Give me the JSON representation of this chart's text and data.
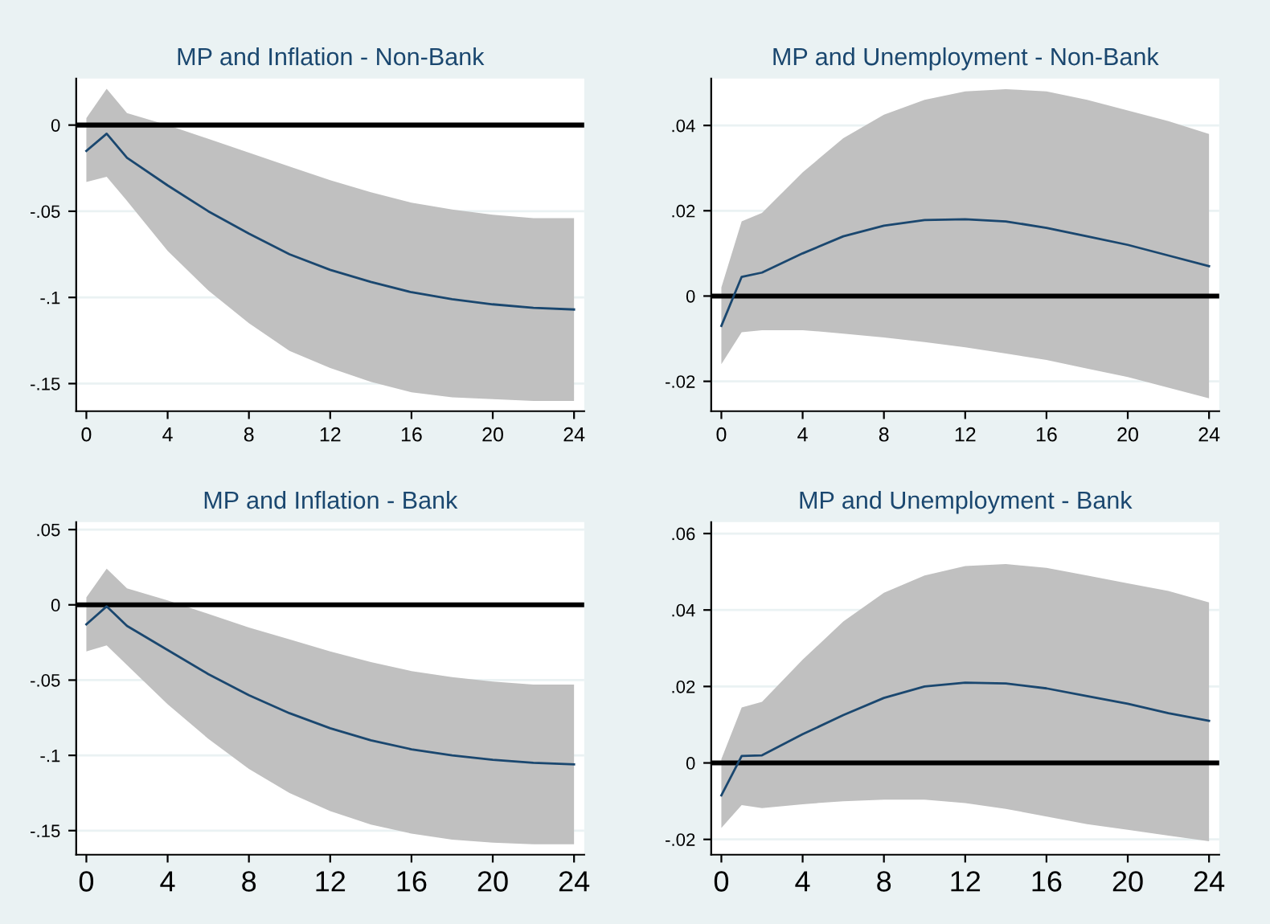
{
  "chart_data": [
    {
      "type": "line",
      "title": "MP and Inflation - Non-Bank",
      "x": [
        0,
        1,
        2,
        4,
        6,
        8,
        10,
        12,
        14,
        16,
        18,
        20,
        22,
        24
      ],
      "series": [
        {
          "color": "#1a476f",
          "values": [
            -0.015,
            -0.005,
            -0.019,
            -0.035,
            -0.05,
            -0.063,
            -0.075,
            -0.084,
            -0.091,
            -0.097,
            -0.101,
            -0.104,
            -0.106,
            -0.107
          ],
          "lower": [
            -0.033,
            -0.03,
            -0.044,
            -0.073,
            -0.096,
            -0.115,
            -0.131,
            -0.141,
            -0.149,
            -0.155,
            -0.158,
            -0.159,
            -0.16,
            -0.16
          ],
          "upper": [
            0.004,
            0.021,
            0.007,
            0.0,
            -0.008,
            -0.016,
            -0.024,
            -0.032,
            -0.039,
            -0.045,
            -0.049,
            -0.052,
            -0.054,
            -0.054
          ]
        }
      ],
      "xlim": [
        -0.5,
        24.5
      ],
      "xticks": [
        0,
        4,
        8,
        12,
        16,
        20,
        24
      ],
      "ylim": [
        -0.166,
        0.027
      ],
      "yticks": [
        {
          "value": 0,
          "label": "0"
        },
        {
          "value": -0.05,
          "label": "-.05"
        },
        {
          "value": -0.1,
          "label": "-.1"
        },
        {
          "value": -0.15,
          "label": "-.15"
        }
      ],
      "ref_lines": [
        {
          "axis": "y",
          "value": 0,
          "color": "#000000"
        }
      ],
      "grid": "y",
      "legend": false
    },
    {
      "type": "line",
      "title": "MP and Unemployment - Non-Bank",
      "x": [
        0,
        1,
        2,
        4,
        6,
        8,
        10,
        12,
        14,
        16,
        18,
        20,
        22,
        24
      ],
      "series": [
        {
          "color": "#1a476f",
          "values": [
            -0.007,
            0.0045,
            0.0055,
            0.01,
            0.014,
            0.0165,
            0.0178,
            0.018,
            0.0175,
            0.016,
            0.014,
            0.012,
            0.0095,
            0.007
          ],
          "lower": [
            -0.016,
            -0.0085,
            -0.008,
            -0.008,
            -0.0088,
            -0.0097,
            -0.0108,
            -0.012,
            -0.0135,
            -0.015,
            -0.017,
            -0.019,
            -0.0215,
            -0.024
          ],
          "upper": [
            0.002,
            0.0175,
            0.0195,
            0.029,
            0.037,
            0.0425,
            0.046,
            0.048,
            0.0485,
            0.048,
            0.046,
            0.0435,
            0.041,
            0.038
          ]
        }
      ],
      "xlim": [
        -0.5,
        24.5
      ],
      "xticks": [
        0,
        4,
        8,
        12,
        16,
        20,
        24
      ],
      "ylim": [
        -0.027,
        0.051
      ],
      "yticks": [
        {
          "value": -0.02,
          "label": "-.02"
        },
        {
          "value": 0,
          "label": "0"
        },
        {
          "value": 0.02,
          "label": ".02"
        },
        {
          "value": 0.04,
          "label": ".04"
        }
      ],
      "ref_lines": [
        {
          "axis": "y",
          "value": 0,
          "color": "#000000"
        }
      ],
      "grid": "y",
      "legend": false
    },
    {
      "type": "line",
      "title": "MP and Inflation - Bank",
      "x": [
        0,
        1,
        2,
        4,
        6,
        8,
        10,
        12,
        14,
        16,
        18,
        20,
        22,
        24
      ],
      "series": [
        {
          "color": "#1a476f",
          "values": [
            -0.013,
            -0.001,
            -0.014,
            -0.03,
            -0.046,
            -0.06,
            -0.072,
            -0.082,
            -0.09,
            -0.096,
            -0.1,
            -0.103,
            -0.105,
            -0.106
          ],
          "lower": [
            -0.031,
            -0.027,
            -0.04,
            -0.066,
            -0.089,
            -0.109,
            -0.125,
            -0.137,
            -0.146,
            -0.152,
            -0.156,
            -0.158,
            -0.159,
            -0.159
          ],
          "upper": [
            0.005,
            0.024,
            0.011,
            0.003,
            -0.006,
            -0.015,
            -0.023,
            -0.031,
            -0.038,
            -0.044,
            -0.048,
            -0.051,
            -0.053,
            -0.053
          ]
        }
      ],
      "xlim": [
        -0.5,
        24.5
      ],
      "xticks": [
        0,
        4,
        8,
        12,
        16,
        20,
        24
      ],
      "ylim": [
        -0.166,
        0.055
      ],
      "yticks": [
        {
          "value": 0.05,
          "label": ".05"
        },
        {
          "value": 0,
          "label": "0"
        },
        {
          "value": -0.05,
          "label": "-.05"
        },
        {
          "value": -0.1,
          "label": "-.1"
        },
        {
          "value": -0.15,
          "label": "-.15"
        }
      ],
      "ref_lines": [
        {
          "axis": "y",
          "value": 0,
          "color": "#000000"
        }
      ],
      "grid": "y",
      "legend": false
    },
    {
      "type": "line",
      "title": "MP and Unemployment - Bank",
      "x": [
        0,
        1,
        2,
        4,
        6,
        8,
        10,
        12,
        14,
        16,
        18,
        20,
        22,
        24
      ],
      "series": [
        {
          "color": "#1a476f",
          "values": [
            -0.0085,
            0.0018,
            0.002,
            0.0075,
            0.0125,
            0.017,
            0.02,
            0.021,
            0.0208,
            0.0195,
            0.0175,
            0.0155,
            0.013,
            0.011
          ],
          "lower": [
            -0.017,
            -0.011,
            -0.0118,
            -0.0108,
            -0.01,
            -0.0096,
            -0.0096,
            -0.0105,
            -0.012,
            -0.014,
            -0.016,
            -0.0175,
            -0.019,
            -0.0205
          ],
          "upper": [
            0.001,
            0.0145,
            0.016,
            0.027,
            0.037,
            0.0445,
            0.049,
            0.0515,
            0.052,
            0.051,
            0.049,
            0.047,
            0.045,
            0.042
          ]
        }
      ],
      "xlim": [
        -0.5,
        24.5
      ],
      "xticks": [
        0,
        4,
        8,
        12,
        16,
        20,
        24
      ],
      "ylim": [
        -0.024,
        0.063
      ],
      "yticks": [
        {
          "value": -0.02,
          "label": "-.02"
        },
        {
          "value": 0,
          "label": "0"
        },
        {
          "value": 0.02,
          "label": ".02"
        },
        {
          "value": 0.04,
          "label": ".04"
        },
        {
          "value": 0.06,
          "label": ".06"
        }
      ],
      "ref_lines": [
        {
          "axis": "y",
          "value": 0,
          "color": "#000000"
        }
      ],
      "grid": "y",
      "legend": false
    }
  ]
}
